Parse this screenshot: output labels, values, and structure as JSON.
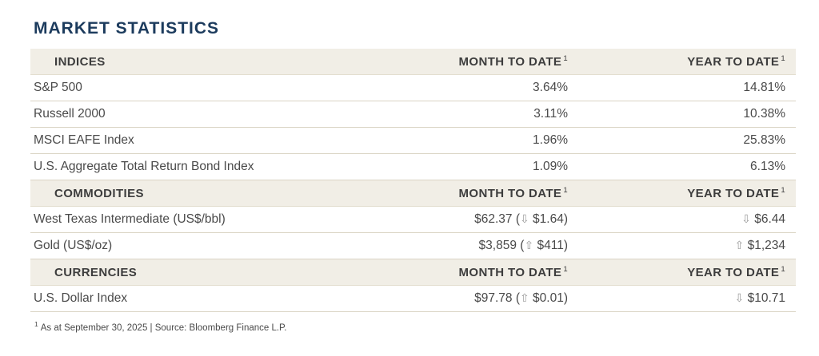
{
  "page": {
    "title": "MARKET STATISTICS"
  },
  "colors": {
    "title": "#1c3b5d",
    "band_background": "#f1eee6",
    "divider": "#dad4c4",
    "body_text": "#4a4a4a",
    "arrow": "#9b9b9b"
  },
  "icons": {
    "up_arrow": "⇧",
    "down_arrow": "⇩"
  },
  "table": {
    "sections": [
      {
        "header": {
          "name": "INDICES",
          "mtd": "MONTH TO DATE",
          "ytd": "YEAR TO DATE",
          "sup": "1"
        },
        "rows": [
          {
            "label": "S&P 500",
            "mtd": {
              "text": "3.64%"
            },
            "ytd": {
              "text": "14.81%"
            }
          },
          {
            "label": "Russell 2000",
            "mtd": {
              "text": "3.11%"
            },
            "ytd": {
              "text": "10.38%"
            }
          },
          {
            "label": "MSCI EAFE Index",
            "mtd": {
              "text": "1.96%"
            },
            "ytd": {
              "text": "25.83%"
            }
          },
          {
            "label": "U.S. Aggregate Total Return Bond Index",
            "mtd": {
              "text": "1.09%"
            },
            "ytd": {
              "text": "6.13%"
            }
          }
        ]
      },
      {
        "header": {
          "name": "COMMODITIES",
          "mtd": "MONTH TO DATE",
          "ytd": "YEAR TO DATE",
          "sup": "1"
        },
        "rows": [
          {
            "label": "West Texas Intermediate (US$/bbl)",
            "mtd": {
              "text": "$62.37",
              "change": "$1.64",
              "dir": "down"
            },
            "ytd": {
              "change": "$6.44",
              "dir": "down"
            }
          },
          {
            "label": "Gold (US$/oz)",
            "mtd": {
              "text": "$3,859",
              "change": "$411",
              "dir": "up"
            },
            "ytd": {
              "change": "$1,234",
              "dir": "up"
            }
          }
        ]
      },
      {
        "header": {
          "name": "CURRENCIES",
          "mtd": "MONTH TO DATE",
          "ytd": "YEAR TO DATE",
          "sup": "1"
        },
        "rows": [
          {
            "label": "U.S. Dollar Index",
            "mtd": {
              "text": "$97.78",
              "change": "$0.01",
              "dir": "up"
            },
            "ytd": {
              "change": "$10.71",
              "dir": "down"
            }
          }
        ]
      }
    ]
  },
  "footnote": {
    "sup": "1",
    "text": "As at September 30, 2025 | Source: Bloomberg Finance L.P."
  }
}
